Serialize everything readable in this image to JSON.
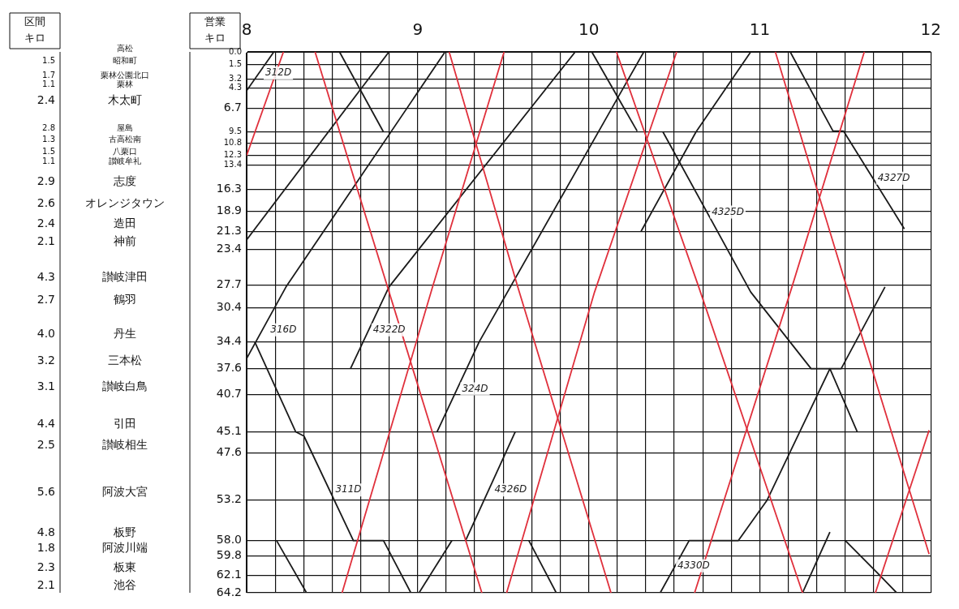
{
  "chart_data": {
    "type": "line",
    "ylabel": "営業キロ",
    "xlim": [
      8,
      12
    ],
    "ylim": [
      64.2,
      0
    ],
    "grid": true,
    "line_style": "solid",
    "xticks": [
      8,
      {
        "value": 8.1667,
        "label": null
      },
      {
        "value": 8.3333,
        "label": null
      },
      {
        "value": 8.5,
        "label": null
      },
      {
        "value": 8.6667,
        "label": null
      },
      {
        "value": 8.8333,
        "label": null
      },
      9,
      {
        "value": 9.1667,
        "label": null
      },
      {
        "value": 9.3333,
        "label": null
      },
      {
        "value": 9.5,
        "label": null
      },
      {
        "value": 9.6667,
        "label": null
      },
      {
        "value": 9.8333,
        "label": null
      },
      10,
      {
        "value": 10.1667,
        "label": null
      },
      {
        "value": 10.3333,
        "label": null
      },
      {
        "value": 10.5,
        "label": null
      },
      {
        "value": 10.6667,
        "label": null
      },
      {
        "value": 10.8333,
        "label": null
      },
      11,
      {
        "value": 11.1667,
        "label": null
      },
      {
        "value": 11.3333,
        "label": null
      },
      {
        "value": 11.5,
        "label": null
      },
      {
        "value": 11.6667,
        "label": null
      },
      {
        "value": 11.8333,
        "label": null
      },
      12
    ],
    "yticks": [
      {
        "value": 0,
        "label": "0.0"
      },
      1.5,
      3.2,
      4.3,
      6.7,
      9.5,
      10.8,
      12.3,
      13.4,
      16.3,
      18.9,
      21.3,
      23.4,
      27.7,
      30.4,
      34.4,
      37.6,
      40.7,
      45.1,
      47.6,
      53.2,
      {
        "value": 58.0,
        "label": "58.0"
      },
      59.8,
      62.1,
      64.2
    ],
    "series": [
      {
        "color": "#e0303c",
        "x": [
          8.0,
          8.215
        ],
        "values": [
          12.3,
          0
        ]
      },
      {
        "color": "#e0303c",
        "x": [
          8.4,
          9.375
        ],
        "values": [
          0,
          64.2
        ]
      },
      {
        "color": "#e0303c",
        "x": [
          8.558,
          9.087,
          9.505
        ],
        "values": [
          64.2,
          27.9,
          0
        ]
      },
      {
        "color": "#e0303c",
        "x": [
          9.184,
          9.585,
          10.13
        ],
        "values": [
          0,
          27.9,
          64.2
        ]
      },
      {
        "color": "#e0303c",
        "x": [
          9.52,
          10.034,
          10.514
        ],
        "values": [
          64.2,
          28.5,
          0
        ]
      },
      {
        "color": "#e0303c",
        "x": [
          10.162,
          10.643,
          11.25
        ],
        "values": [
          0,
          27.9,
          64.2
        ]
      },
      {
        "color": "#e0303c",
        "x": [
          10.619,
          11.188,
          11.611
        ],
        "values": [
          64.2,
          27.9,
          0
        ]
      },
      {
        "color": "#e0303c",
        "x": [
          11.091,
          11.508,
          11.99
        ],
        "values": [
          0,
          27.9,
          59.6
        ]
      },
      {
        "color": "#e0303c",
        "x": [
          11.676,
          11.99
        ],
        "values": [
          64.2,
          44.9
        ]
      },
      {
        "color": "#1a1a1a",
        "x": [
          8.0,
          8.159
        ],
        "values": [
          4.6,
          0
        ]
      },
      {
        "color": "#1a1a1a",
        "x": [
          8.0,
          8.832
        ],
        "values": [
          22.3,
          0
        ]
      },
      {
        "color": "#1a1a1a",
        "x": [
          8.0,
          8.23,
          9.16
        ],
        "values": [
          36.4,
          27.9,
          0
        ]
      },
      {
        "color": "#1a1a1a",
        "x": [
          8.047,
          8.287,
          8.335,
          8.624,
          8.8,
          8.96
        ],
        "values": [
          34.4,
          45.1,
          45.6,
          58.0,
          58.0,
          64.2
        ]
      },
      {
        "color": "#1a1a1a",
        "x": [
          8.543,
          8.8
        ],
        "values": [
          0,
          9.5
        ]
      },
      {
        "color": "#1a1a1a",
        "x": [
          8.607,
          8.832,
          9.921
        ],
        "values": [
          37.6,
          27.9,
          0
        ]
      },
      {
        "color": "#1a1a1a",
        "x": [
          9.113,
          9.36,
          10.322
        ],
        "values": [
          45.1,
          34.4,
          0
        ]
      },
      {
        "color": "#1a1a1a",
        "x": [
          9.28,
          9.57
        ],
        "values": [
          58.0,
          45.1
        ]
      },
      {
        "color": "#1a1a1a",
        "x": [
          10.018,
          10.283
        ],
        "values": [
          0,
          9.4
        ]
      },
      {
        "color": "#1a1a1a",
        "x": [
          10.434,
          10.947,
          11.3,
          11.41,
          11.57
        ],
        "values": [
          9.5,
          28.5,
          37.6,
          37.6,
          45.1
        ]
      },
      {
        "color": "#1a1a1a",
        "x": [
          10.418,
          10.587,
          10.875,
          11.043,
          11.41,
          11.476,
          11.732
        ],
        "values": [
          64.2,
          58.0,
          58.0,
          53.2,
          37.6,
          37.6,
          27.9
        ]
      },
      {
        "color": "#1a1a1a",
        "x": [
          11.178,
          11.428,
          11.49,
          11.845
        ],
        "values": [
          0,
          9.4,
          9.4,
          21.0
        ]
      },
      {
        "color": "#1a1a1a",
        "x": [
          11.25,
          11.41
        ],
        "values": [
          64.2,
          57.0
        ]
      },
      {
        "color": "#1a1a1a",
        "x": [
          11.5,
          11.7,
          11.8
        ],
        "values": [
          58.0,
          62.1,
          64.2
        ]
      },
      {
        "color": "#1a1a1a",
        "x": [
          8.175,
          8.35
        ],
        "values": [
          58.0,
          64.2
        ]
      },
      {
        "color": "#1a1a1a",
        "x": [
          9.008,
          9.2
        ],
        "values": [
          64.2,
          58.0
        ]
      },
      {
        "color": "#1a1a1a",
        "x": [
          9.65,
          9.81
        ],
        "values": [
          58.0,
          64.2
        ]
      },
      {
        "color": "#1a1a1a",
        "x": [
          10.306,
          10.627,
          10.947
        ],
        "values": [
          21.3,
          9.5,
          0
        ]
      }
    ],
    "annotations": [
      "区間キロ",
      "高松",
      "昭和町",
      "栗林公園北口",
      "栗林",
      "木太町",
      "屋島",
      "古高松南",
      "八栗口",
      "讃岐牟礼",
      "志度",
      "オレンジタウン",
      "造田",
      "神前",
      "讃岐津田",
      "鶴羽",
      "丹生",
      "三本松",
      "讃岐白鳥",
      "引田",
      "讃岐相生",
      "阿波大宮",
      "板野",
      "阿波川端",
      "板東",
      "池谷",
      "1.5",
      "1.7",
      "1.1",
      "2.4",
      "2.8",
      "1.3",
      "1.5",
      "1.1",
      "2.9",
      "2.6",
      "2.4",
      "2.1",
      "4.3",
      "2.7",
      "4.0",
      "3.2",
      "3.1",
      "4.4",
      "2.5",
      "5.6",
      "4.8",
      "1.8",
      "2.3",
      "2.1",
      {
        "text": "312D",
        "x": 8.09,
        "y": 2.5
      },
      {
        "text": "316D",
        "x": 8.12,
        "y": 33
      },
      {
        "text": "311D",
        "x": 8.5,
        "y": 52
      },
      {
        "text": "4322D",
        "x": 8.72,
        "y": 33
      },
      {
        "text": "324D",
        "x": 9.24,
        "y": 40
      },
      {
        "text": "4326D",
        "x": 9.43,
        "y": 52
      },
      {
        "text": "4325D",
        "x": 10.7,
        "y": 19
      },
      {
        "text": "4330D",
        "x": 10.5,
        "y": 61
      },
      {
        "text": "4327D",
        "x": 11.67,
        "y": 15
      }
    ]
  }
}
